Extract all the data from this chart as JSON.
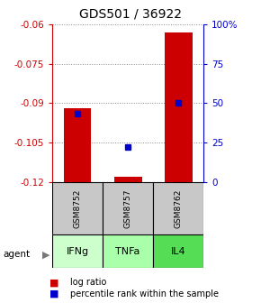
{
  "title": "GDS501 / 36922",
  "samples": [
    "GSM8752",
    "GSM8757",
    "GSM8762"
  ],
  "agents": [
    "IFNg",
    "TNFa",
    "IL4"
  ],
  "log_ratios": [
    -0.092,
    -0.118,
    -0.063
  ],
  "percentile_ranks": [
    43,
    22,
    50
  ],
  "ylim_left": [
    -0.12,
    -0.06
  ],
  "ylim_right": [
    0,
    100
  ],
  "yticks_left": [
    -0.12,
    -0.105,
    -0.09,
    -0.075,
    -0.06
  ],
  "yticks_right": [
    0,
    25,
    50,
    75,
    100
  ],
  "bar_color": "#cc0000",
  "dot_color": "#0000cc",
  "sample_bg": "#c8c8c8",
  "agent_colors": [
    "#ccffcc",
    "#aaffaa",
    "#55dd55"
  ],
  "left_axis_color": "#cc0000",
  "right_axis_color": "#0000cc",
  "title_fontsize": 10,
  "tick_fontsize": 7.5,
  "bar_width": 0.55
}
